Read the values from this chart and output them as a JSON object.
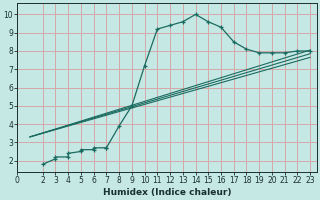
{
  "title": "",
  "xlabel": "Humidex (Indice chaleur)",
  "background_color": "#c5e8e5",
  "grid_color": "#d4a8a8",
  "line_color": "#1a6b60",
  "xlim": [
    0,
    23.5
  ],
  "ylim": [
    1.4,
    10.6
  ],
  "xticks": [
    0,
    2,
    3,
    4,
    5,
    6,
    7,
    8,
    9,
    10,
    11,
    12,
    13,
    14,
    15,
    16,
    17,
    18,
    19,
    20,
    21,
    22,
    23
  ],
  "yticks": [
    2,
    3,
    4,
    5,
    6,
    7,
    8,
    9,
    10
  ],
  "curve1_x": [
    2,
    3,
    3,
    4,
    4,
    5,
    5,
    6,
    6,
    7,
    7,
    8,
    9,
    10,
    11,
    12,
    13,
    14,
    15,
    16,
    17,
    18,
    19,
    20,
    21,
    22,
    23
  ],
  "curve1_y": [
    1.8,
    2.1,
    2.2,
    2.2,
    2.4,
    2.5,
    2.6,
    2.6,
    2.7,
    2.7,
    2.7,
    3.9,
    5.0,
    7.2,
    9.2,
    9.4,
    9.6,
    10.0,
    9.6,
    9.3,
    8.5,
    8.1,
    7.9,
    7.9,
    7.9,
    8.0,
    8.0
  ],
  "line1_x": [
    1,
    23
  ],
  "line1_y": [
    3.3,
    8.05
  ],
  "line2_x": [
    1,
    23
  ],
  "line2_y": [
    3.3,
    7.85
  ],
  "line3_x": [
    1,
    23
  ],
  "line3_y": [
    3.3,
    7.65
  ]
}
